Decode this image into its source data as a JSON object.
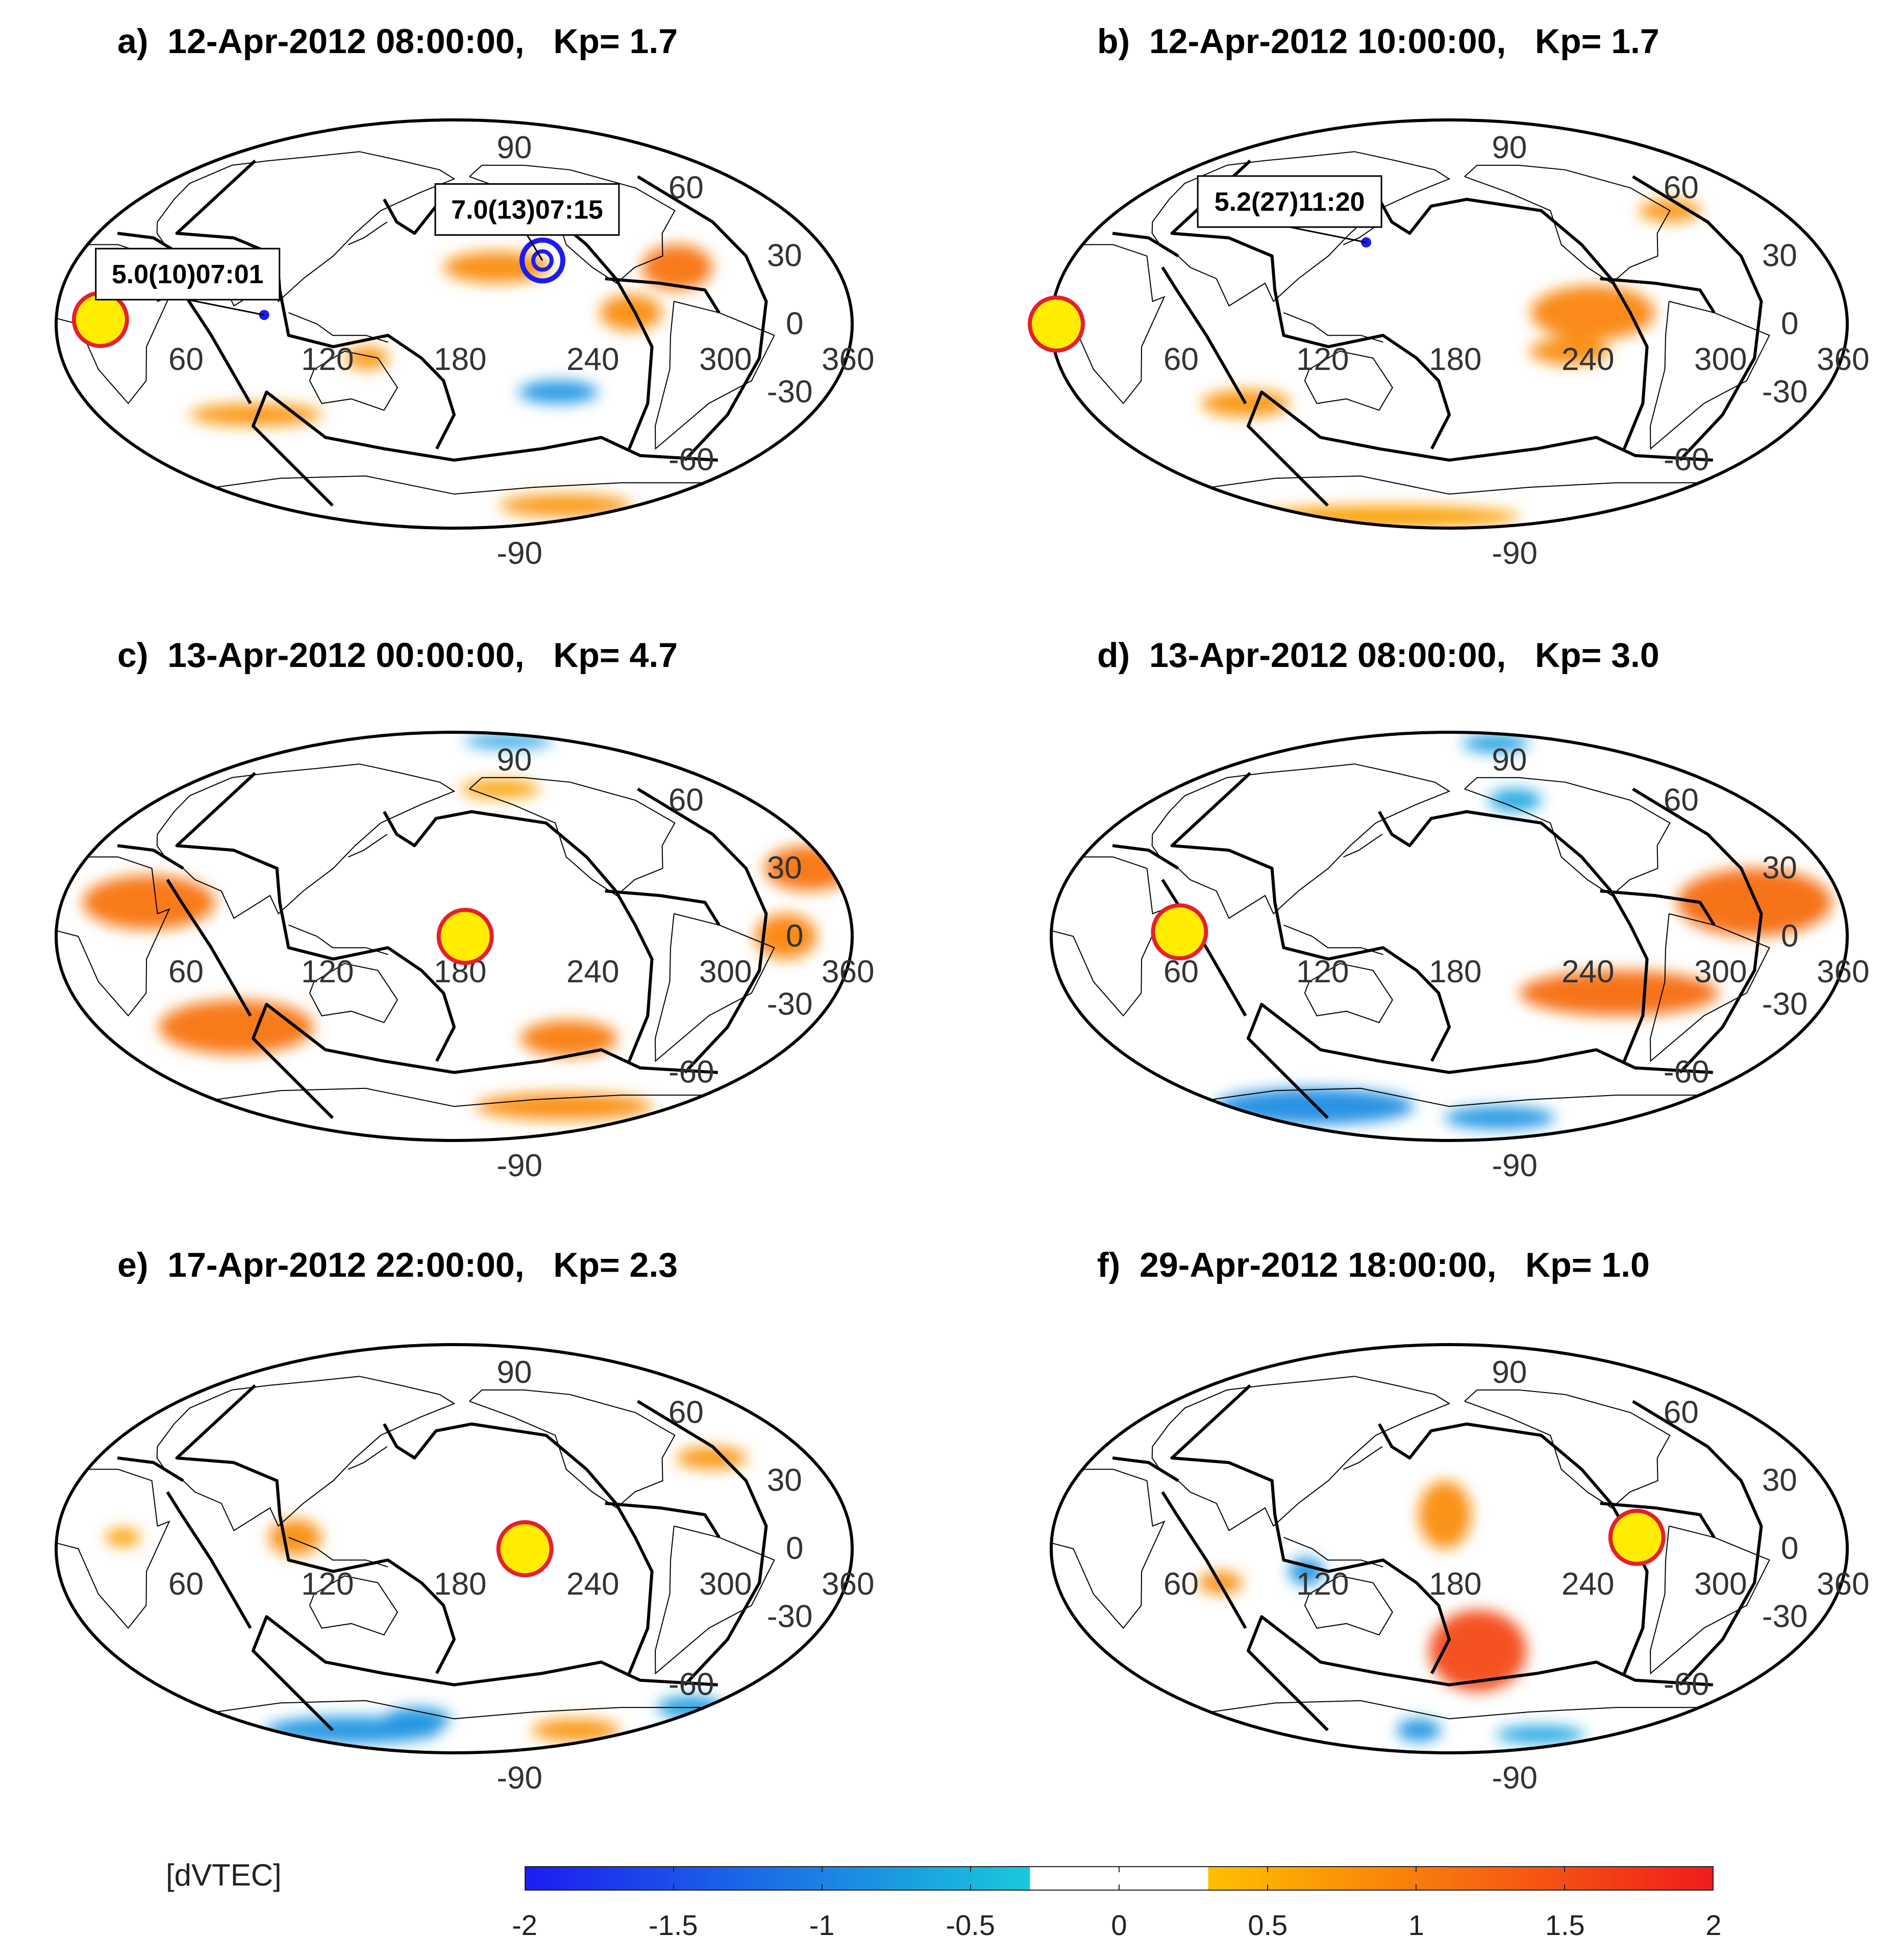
{
  "chart_data": {
    "type": "map",
    "colorbar": {
      "label": "[dVTEC]",
      "ticks": [
        "-2",
        "-1.5",
        "-1",
        "-0.5",
        "0",
        "0.5",
        "1",
        "1.5",
        "2"
      ],
      "range": [
        -2,
        2
      ],
      "blank_range": [
        -0.3,
        0.3
      ],
      "colors": {
        "low": "#1c1cf0",
        "mid_low": "#19c9dc",
        "mid_high": "#ffc000",
        "high": "#f01c1c"
      }
    },
    "grid_labels": {
      "lon": [
        "60",
        "120",
        "180",
        "240",
        "300",
        "360"
      ],
      "lat": [
        "90",
        "60",
        "30",
        "0",
        "-30",
        "-60",
        "-90"
      ]
    },
    "panels": [
      {
        "id": "a",
        "label": "a)",
        "date": "12-Apr-2012 08:00:00,",
        "kp": "Kp= 1.7",
        "markers": [
          {
            "type": "station",
            "lon": 20,
            "lat": 2
          }
        ],
        "events": [
          {
            "text": "5.0(10)07:01",
            "lon": 94,
            "lat": 4
          },
          {
            "text": "7.0(13)07:15",
            "lon": 222,
            "lat": 28,
            "ring": true
          }
        ],
        "anomalies": [
          {
            "lon": 200,
            "lat": 25,
            "rx": 24,
            "ry": 7,
            "v": 0.6
          },
          {
            "lon": 285,
            "lat": 25,
            "rx": 16,
            "ry": 10,
            "v": 0.9
          },
          {
            "lon": 260,
            "lat": 5,
            "rx": 14,
            "ry": 8,
            "v": 0.6
          },
          {
            "lon": 140,
            "lat": -15,
            "rx": 10,
            "ry": 5,
            "v": 0.5
          },
          {
            "lon": 80,
            "lat": -40,
            "rx": 30,
            "ry": 5,
            "v": 0.5
          },
          {
            "lon": 230,
            "lat": -30,
            "rx": 18,
            "ry": 5,
            "v": -0.6
          },
          {
            "lon": 290,
            "lat": -80,
            "rx": 30,
            "ry": 5,
            "v": 0.5
          }
        ]
      },
      {
        "id": "b",
        "label": "b)",
        "date": "12-Apr-2012 10:00:00,",
        "kp": "Kp= 1.7",
        "markers": [
          {
            "type": "station",
            "lon": -4,
            "lat": 0
          }
        ],
        "events": [
          {
            "text": "5.2(27)11:20",
            "lon": 139,
            "lat": 36
          }
        ],
        "anomalies": [
          {
            "lon": 245,
            "lat": 5,
            "rx": 28,
            "ry": 12,
            "v": 0.7
          },
          {
            "lon": 235,
            "lat": -12,
            "rx": 18,
            "ry": 6,
            "v": 0.6
          },
          {
            "lon": 300,
            "lat": 50,
            "rx": 14,
            "ry": 5,
            "v": 0.5
          },
          {
            "lon": 80,
            "lat": -35,
            "rx": 20,
            "ry": 6,
            "v": 0.5
          },
          {
            "lon": 100,
            "lat": -85,
            "rx": 60,
            "ry": 5,
            "v": 0.4
          }
        ]
      },
      {
        "id": "c",
        "label": "c)",
        "date": "13-Apr-2012 00:00:00,",
        "kp": "Kp= 4.7",
        "markers": [
          {
            "type": "station",
            "lon": 185,
            "lat": 0
          }
        ],
        "events": [],
        "anomalies": [
          {
            "lon": 40,
            "lat": 15,
            "rx": 30,
            "ry": 12,
            "v": 0.9
          },
          {
            "lon": 70,
            "lat": -40,
            "rx": 35,
            "ry": 12,
            "v": 0.9
          },
          {
            "lon": 350,
            "lat": 30,
            "rx": 20,
            "ry": 10,
            "v": 0.9
          },
          {
            "lon": 330,
            "lat": 0,
            "rx": 14,
            "ry": 10,
            "v": 0.7
          },
          {
            "lon": 240,
            "lat": -45,
            "rx": 22,
            "ry": 8,
            "v": 0.8
          },
          {
            "lon": 270,
            "lat": -75,
            "rx": 40,
            "ry": 6,
            "v": 0.6
          },
          {
            "lon": 210,
            "lat": 65,
            "rx": 18,
            "ry": 4,
            "v": 0.4
          },
          {
            "lon": 250,
            "lat": 86,
            "rx": 20,
            "ry": 3,
            "v": -0.5
          }
        ]
      },
      {
        "id": "d",
        "label": "d)",
        "date": "13-Apr-2012 08:00:00,",
        "kp": "Kp= 3.0",
        "markers": [
          {
            "type": "station",
            "lon": 58,
            "lat": 2
          }
        ],
        "events": [],
        "anomalies": [
          {
            "lon": 320,
            "lat": 15,
            "rx": 35,
            "ry": 15,
            "v": 1.0
          },
          {
            "lon": 260,
            "lat": -25,
            "rx": 45,
            "ry": 10,
            "v": 1.0
          },
          {
            "lon": 70,
            "lat": -75,
            "rx": 45,
            "ry": 8,
            "v": -0.7
          },
          {
            "lon": 230,
            "lat": -80,
            "rx": 25,
            "ry": 5,
            "v": -0.6
          },
          {
            "lon": 240,
            "lat": 85,
            "rx": 15,
            "ry": 4,
            "v": -0.5
          },
          {
            "lon": 220,
            "lat": 60,
            "rx": 12,
            "ry": 5,
            "v": -0.4
          }
        ]
      },
      {
        "id": "e",
        "label": "e)",
        "date": "17-Apr-2012 22:00:00,",
        "kp": "Kp= 2.3",
        "markers": [
          {
            "type": "station",
            "lon": 212,
            "lat": 0
          }
        ],
        "events": [],
        "anomalies": [
          {
            "lon": 108,
            "lat": 5,
            "rx": 12,
            "ry": 8,
            "v": 0.6
          },
          {
            "lon": 310,
            "lat": 40,
            "rx": 16,
            "ry": 5,
            "v": 0.5
          },
          {
            "lon": 80,
            "lat": -80,
            "rx": 40,
            "ry": 6,
            "v": -0.6
          },
          {
            "lon": 150,
            "lat": -75,
            "rx": 15,
            "ry": 5,
            "v": -0.6
          },
          {
            "lon": 300,
            "lat": -80,
            "rx": 20,
            "ry": 5,
            "v": 0.5
          },
          {
            "lon": 350,
            "lat": -70,
            "rx": 15,
            "ry": 5,
            "v": -0.5
          },
          {
            "lon": 30,
            "lat": 5,
            "rx": 8,
            "ry": 4,
            "v": 0.4
          }
        ]
      },
      {
        "id": "f",
        "label": "f)",
        "date": "29-Apr-2012 18:00:00,",
        "kp": "Kp= 1.0",
        "markers": [
          {
            "type": "station",
            "lon": 265,
            "lat": 5
          }
        ],
        "events": [],
        "anomalies": [
          {
            "lon": 178,
            "lat": 15,
            "rx": 12,
            "ry": 15,
            "v": 0.6
          },
          {
            "lon": 195,
            "lat": -45,
            "rx": 22,
            "ry": 18,
            "v": 1.4
          },
          {
            "lon": 115,
            "lat": -10,
            "rx": 8,
            "ry": 6,
            "v": -0.6
          },
          {
            "lon": 75,
            "lat": -15,
            "rx": 10,
            "ry": 5,
            "v": 0.6
          },
          {
            "lon": 150,
            "lat": -80,
            "rx": 10,
            "ry": 5,
            "v": -0.6
          },
          {
            "lon": 280,
            "lat": -82,
            "rx": 20,
            "ry": 4,
            "v": -0.4
          }
        ]
      }
    ]
  }
}
